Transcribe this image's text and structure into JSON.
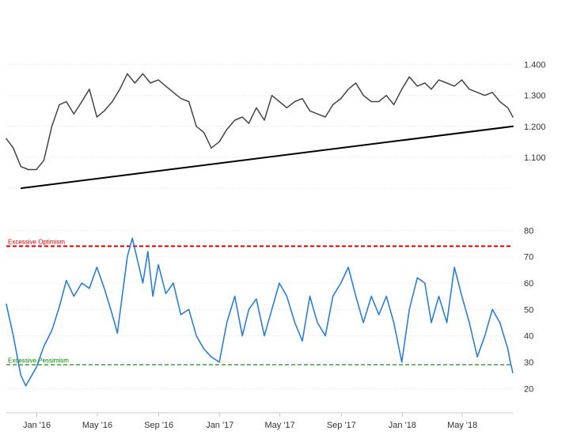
{
  "chart_data": [
    {
      "type": "line",
      "title": "",
      "xlabel": "",
      "ylabel": "",
      "ylim": [
        1.0,
        1.45
      ],
      "yticks": [
        1.1,
        1.2,
        1.3,
        1.4
      ],
      "ytick_labels": [
        "1.100",
        "1.200",
        "1.300",
        "1.400"
      ],
      "grid": "on",
      "colors": {
        "price": "#444444",
        "trendline": "#000000"
      },
      "series": [
        {
          "values": [
            {
              "x": "2015-11-01",
              "y": 1.16
            },
            {
              "x": "2015-11-15",
              "y": 1.13
            },
            {
              "x": "2015-11-30",
              "y": 1.07
            },
            {
              "x": "2015-12-15",
              "y": 1.06
            },
            {
              "x": "2015-12-31",
              "y": 1.06
            },
            {
              "x": "2016-01-15",
              "y": 1.09
            },
            {
              "x": "2016-01-31",
              "y": 1.2
            },
            {
              "x": "2016-02-15",
              "y": 1.27
            },
            {
              "x": "2016-02-29",
              "y": 1.28
            },
            {
              "x": "2016-03-15",
              "y": 1.24
            },
            {
              "x": "2016-03-31",
              "y": 1.28
            },
            {
              "x": "2016-04-15",
              "y": 1.32
            },
            {
              "x": "2016-04-30",
              "y": 1.23
            },
            {
              "x": "2016-05-15",
              "y": 1.25
            },
            {
              "x": "2016-05-31",
              "y": 1.28
            },
            {
              "x": "2016-06-15",
              "y": 1.32
            },
            {
              "x": "2016-06-30",
              "y": 1.37
            },
            {
              "x": "2016-07-15",
              "y": 1.34
            },
            {
              "x": "2016-07-31",
              "y": 1.37
            },
            {
              "x": "2016-08-15",
              "y": 1.34
            },
            {
              "x": "2016-08-31",
              "y": 1.35
            },
            {
              "x": "2016-09-15",
              "y": 1.33
            },
            {
              "x": "2016-09-30",
              "y": 1.31
            },
            {
              "x": "2016-10-15",
              "y": 1.29
            },
            {
              "x": "2016-10-31",
              "y": 1.28
            },
            {
              "x": "2016-11-15",
              "y": 1.2
            },
            {
              "x": "2016-11-30",
              "y": 1.18
            },
            {
              "x": "2016-12-15",
              "y": 1.13
            },
            {
              "x": "2016-12-31",
              "y": 1.15
            },
            {
              "x": "2017-01-15",
              "y": 1.19
            },
            {
              "x": "2017-01-31",
              "y": 1.22
            },
            {
              "x": "2017-02-15",
              "y": 1.23
            },
            {
              "x": "2017-02-28",
              "y": 1.21
            },
            {
              "x": "2017-03-15",
              "y": 1.26
            },
            {
              "x": "2017-03-31",
              "y": 1.22
            },
            {
              "x": "2017-04-15",
              "y": 1.3
            },
            {
              "x": "2017-04-30",
              "y": 1.28
            },
            {
              "x": "2017-05-15",
              "y": 1.26
            },
            {
              "x": "2017-05-31",
              "y": 1.28
            },
            {
              "x": "2017-06-15",
              "y": 1.29
            },
            {
              "x": "2017-06-30",
              "y": 1.25
            },
            {
              "x": "2017-07-15",
              "y": 1.24
            },
            {
              "x": "2017-07-31",
              "y": 1.23
            },
            {
              "x": "2017-08-15",
              "y": 1.27
            },
            {
              "x": "2017-08-31",
              "y": 1.29
            },
            {
              "x": "2017-09-15",
              "y": 1.32
            },
            {
              "x": "2017-09-30",
              "y": 1.34
            },
            {
              "x": "2017-10-15",
              "y": 1.3
            },
            {
              "x": "2017-10-31",
              "y": 1.28
            },
            {
              "x": "2017-11-15",
              "y": 1.28
            },
            {
              "x": "2017-11-30",
              "y": 1.3
            },
            {
              "x": "2017-12-15",
              "y": 1.27
            },
            {
              "x": "2017-12-31",
              "y": 1.32
            },
            {
              "x": "2018-01-15",
              "y": 1.36
            },
            {
              "x": "2018-01-31",
              "y": 1.33
            },
            {
              "x": "2018-02-15",
              "y": 1.34
            },
            {
              "x": "2018-02-28",
              "y": 1.32
            },
            {
              "x": "2018-03-15",
              "y": 1.35
            },
            {
              "x": "2018-03-31",
              "y": 1.34
            },
            {
              "x": "2018-04-15",
              "y": 1.33
            },
            {
              "x": "2018-04-30",
              "y": 1.35
            },
            {
              "x": "2018-05-15",
              "y": 1.32
            },
            {
              "x": "2018-05-31",
              "y": 1.31
            },
            {
              "x": "2018-06-15",
              "y": 1.3
            },
            {
              "x": "2018-06-30",
              "y": 1.31
            },
            {
              "x": "2018-07-15",
              "y": 1.28
            },
            {
              "x": "2018-07-31",
              "y": 1.26
            },
            {
              "x": "2018-08-10",
              "y": 1.23
            }
          ]
        },
        {
          "values": [
            {
              "x": "2015-12-01",
              "y": 1.0
            },
            {
              "x": "2018-08-10",
              "y": 1.2
            }
          ]
        }
      ]
    },
    {
      "type": "line",
      "title": "",
      "xlabel": "",
      "ylabel": "",
      "ylim": [
        15,
        84
      ],
      "yticks": [
        20,
        30,
        40,
        50,
        60,
        70,
        80
      ],
      "ytick_labels": [
        "20",
        "30",
        "40",
        "50",
        "60",
        "70",
        "80"
      ],
      "x_tick_labels": [
        "Jan '16",
        "May '16",
        "Sep '16",
        "Jan '17",
        "May '17",
        "Sep '17",
        "Jan '18",
        "May '18"
      ],
      "x_tick_dates": [
        "2016-01-01",
        "2016-05-01",
        "2016-09-01",
        "2017-01-01",
        "2017-05-01",
        "2017-09-01",
        "2018-01-01",
        "2018-05-01"
      ],
      "xlim": [
        "2015-11-01",
        "2018-08-10"
      ],
      "grid": "on",
      "colors": {
        "sentiment": "#2a7fd4",
        "optimism": "#dd0000",
        "pessimism": "#008800"
      },
      "reference_lines": [
        {
          "label": "Excessive Optimism",
          "y": 74
        },
        {
          "label": "Excessive Pessimism",
          "y": 29
        }
      ],
      "series": [
        {
          "values": [
            {
              "x": "2015-11-01",
              "y": 52
            },
            {
              "x": "2015-11-15",
              "y": 40
            },
            {
              "x": "2015-11-30",
              "y": 25
            },
            {
              "x": "2015-12-10",
              "y": 21
            },
            {
              "x": "2015-12-31",
              "y": 28
            },
            {
              "x": "2016-01-15",
              "y": 36
            },
            {
              "x": "2016-01-31",
              "y": 42
            },
            {
              "x": "2016-02-15",
              "y": 51
            },
            {
              "x": "2016-02-29",
              "y": 61
            },
            {
              "x": "2016-03-15",
              "y": 55
            },
            {
              "x": "2016-03-31",
              "y": 60
            },
            {
              "x": "2016-04-15",
              "y": 58
            },
            {
              "x": "2016-04-30",
              "y": 66
            },
            {
              "x": "2016-05-15",
              "y": 58
            },
            {
              "x": "2016-05-31",
              "y": 48
            },
            {
              "x": "2016-06-10",
              "y": 41
            },
            {
              "x": "2016-06-30",
              "y": 70
            },
            {
              "x": "2016-07-10",
              "y": 77
            },
            {
              "x": "2016-07-31",
              "y": 60
            },
            {
              "x": "2016-08-10",
              "y": 72
            },
            {
              "x": "2016-08-20",
              "y": 55
            },
            {
              "x": "2016-08-31",
              "y": 67
            },
            {
              "x": "2016-09-15",
              "y": 56
            },
            {
              "x": "2016-09-30",
              "y": 60
            },
            {
              "x": "2016-10-15",
              "y": 48
            },
            {
              "x": "2016-10-31",
              "y": 50
            },
            {
              "x": "2016-11-15",
              "y": 40
            },
            {
              "x": "2016-11-30",
              "y": 35
            },
            {
              "x": "2016-12-15",
              "y": 32
            },
            {
              "x": "2016-12-31",
              "y": 30
            },
            {
              "x": "2017-01-15",
              "y": 45
            },
            {
              "x": "2017-01-31",
              "y": 55
            },
            {
              "x": "2017-02-15",
              "y": 40
            },
            {
              "x": "2017-02-28",
              "y": 50
            },
            {
              "x": "2017-03-15",
              "y": 54
            },
            {
              "x": "2017-03-31",
              "y": 40
            },
            {
              "x": "2017-04-15",
              "y": 50
            },
            {
              "x": "2017-04-30",
              "y": 60
            },
            {
              "x": "2017-05-15",
              "y": 55
            },
            {
              "x": "2017-05-31",
              "y": 45
            },
            {
              "x": "2017-06-15",
              "y": 38
            },
            {
              "x": "2017-06-30",
              "y": 55
            },
            {
              "x": "2017-07-15",
              "y": 45
            },
            {
              "x": "2017-07-31",
              "y": 40
            },
            {
              "x": "2017-08-15",
              "y": 55
            },
            {
              "x": "2017-08-31",
              "y": 60
            },
            {
              "x": "2017-09-15",
              "y": 66
            },
            {
              "x": "2017-09-30",
              "y": 55
            },
            {
              "x": "2017-10-15",
              "y": 45
            },
            {
              "x": "2017-10-31",
              "y": 55
            },
            {
              "x": "2017-11-15",
              "y": 48
            },
            {
              "x": "2017-11-30",
              "y": 55
            },
            {
              "x": "2017-12-15",
              "y": 45
            },
            {
              "x": "2017-12-31",
              "y": 30
            },
            {
              "x": "2018-01-15",
              "y": 50
            },
            {
              "x": "2018-01-31",
              "y": 62
            },
            {
              "x": "2018-02-15",
              "y": 60
            },
            {
              "x": "2018-02-28",
              "y": 45
            },
            {
              "x": "2018-03-15",
              "y": 55
            },
            {
              "x": "2018-03-31",
              "y": 45
            },
            {
              "x": "2018-04-15",
              "y": 66
            },
            {
              "x": "2018-04-30",
              "y": 55
            },
            {
              "x": "2018-05-15",
              "y": 45
            },
            {
              "x": "2018-05-31",
              "y": 32
            },
            {
              "x": "2018-06-15",
              "y": 40
            },
            {
              "x": "2018-06-30",
              "y": 50
            },
            {
              "x": "2018-07-15",
              "y": 45
            },
            {
              "x": "2018-07-31",
              "y": 35
            },
            {
              "x": "2018-08-05",
              "y": 30
            },
            {
              "x": "2018-08-10",
              "y": 26
            }
          ]
        }
      ]
    }
  ]
}
